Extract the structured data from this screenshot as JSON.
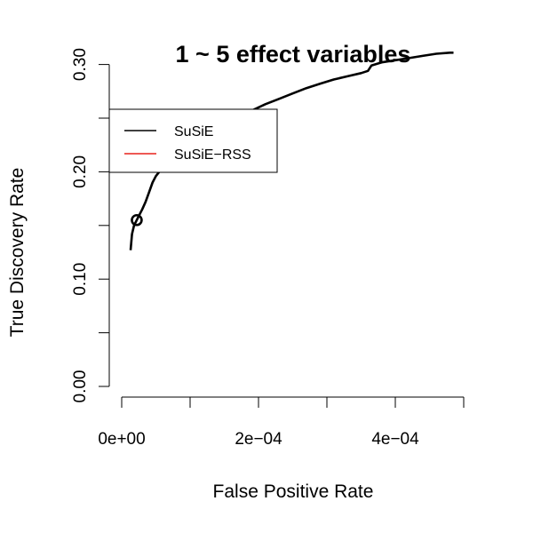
{
  "chart_data": {
    "type": "line",
    "title": "1 ~ 5 effect variables",
    "xlabel": "False Positive Rate",
    "ylabel": "True Discovery Rate",
    "xlim": [
      -2e-05,
      0.0005
    ],
    "ylim": [
      0.0,
      0.31
    ],
    "x_ticks": [
      0,
      0.0001,
      0.0002,
      0.0003,
      0.0004,
      0.0005
    ],
    "x_tick_labels": [
      "0e+00",
      "",
      "2e−04",
      "",
      "4e−04",
      ""
    ],
    "y_ticks": [
      0.0,
      0.05,
      0.1,
      0.15,
      0.2,
      0.25,
      0.3
    ],
    "y_tick_labels": [
      "0.00",
      "",
      "0.10",
      "",
      "0.20",
      "",
      "0.30"
    ],
    "grid": false,
    "legend_position": "top-left",
    "series": [
      {
        "name": "SuSiE",
        "color": "#000000",
        "x": [
          1.3e-05,
          1.5e-05,
          1.8e-05,
          2.2e-05,
          2.6e-05,
          3e-05,
          3.5e-05,
          4e-05,
          4.5e-05,
          5e-05,
          5.5e-05,
          6e-05,
          7e-05,
          8e-05,
          9e-05,
          0.0001,
          0.000115,
          0.00013,
          0.00015,
          0.00017,
          0.00019,
          0.00021,
          0.00023,
          0.00025,
          0.00027,
          0.00029,
          0.00031,
          0.00033,
          0.00035,
          0.00036,
          0.000365,
          0.00038,
          0.0004,
          0.00042,
          0.00044,
          0.00046,
          0.00048,
          0.000485
        ],
        "values": [
          0.127,
          0.142,
          0.15,
          0.155,
          0.16,
          0.165,
          0.172,
          0.181,
          0.19,
          0.196,
          0.2,
          0.203,
          0.21,
          0.217,
          0.224,
          0.23,
          0.236,
          0.24,
          0.245,
          0.251,
          0.257,
          0.263,
          0.268,
          0.273,
          0.278,
          0.282,
          0.286,
          0.289,
          0.292,
          0.294,
          0.299,
          0.302,
          0.304,
          0.306,
          0.308,
          0.31,
          0.311,
          0.311
        ]
      },
      {
        "name": "SuSiE−RSS",
        "color": "#e8221b",
        "x": [],
        "values": []
      }
    ],
    "markers": [
      {
        "series": "SuSiE",
        "shape": "open-circle",
        "x": 2.2e-05,
        "y": 0.155
      }
    ]
  }
}
